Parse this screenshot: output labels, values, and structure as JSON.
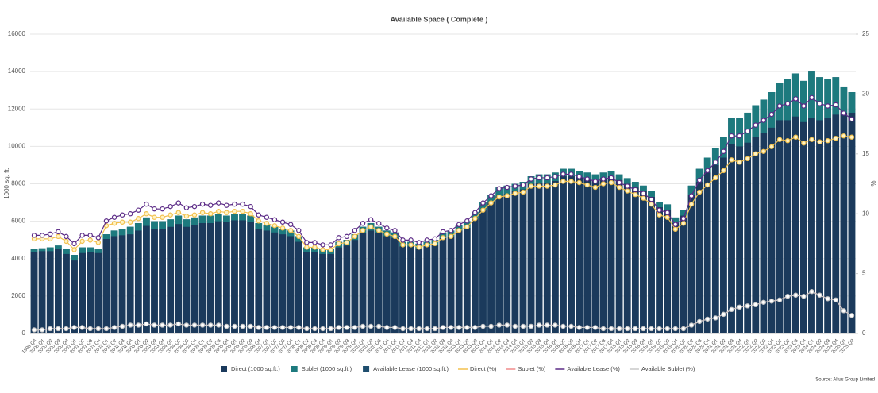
{
  "chart_data": {
    "type": "bar",
    "title": "Available Space ( Complete )",
    "y_label": "1000 sq. ft.",
    "y2_label": "%",
    "source": "Source:  Altus Group Limited",
    "stacked": true,
    "grid": true,
    "legend": "bottom",
    "categories": [
      "1999 Q4",
      "2000 Q1",
      "2000 Q2",
      "2000 Q3",
      "2000 Q4",
      "2001 Q1",
      "2001 Q2",
      "2001 Q3",
      "2001 Q4",
      "2002 Q1",
      "2002 Q2",
      "2002 Q3",
      "2002 Q4",
      "2003 Q1",
      "2003 Q2",
      "2003 Q3",
      "2003 Q4",
      "2004 Q1",
      "2004 Q2",
      "2004 Q3",
      "2004 Q4",
      "2005 Q1",
      "2005 Q2",
      "2005 Q3",
      "2005 Q4",
      "2006 Q1",
      "2006 Q2",
      "2006 Q3",
      "2006 Q4",
      "2007 Q1",
      "2007 Q2",
      "2007 Q3",
      "2007 Q4",
      "2008 Q1",
      "2008 Q2",
      "2008 Q3",
      "2008 Q4",
      "2009 Q1",
      "2009 Q2",
      "2009 Q3",
      "2009 Q4",
      "2010 Q1",
      "2010 Q2",
      "2010 Q3",
      "2010 Q4",
      "2011 Q1",
      "2011 Q2",
      "2011 Q3",
      "2011 Q4",
      "2012 Q1",
      "2012 Q2",
      "2012 Q3",
      "2012 Q4",
      "2013 Q1",
      "2013 Q2",
      "2013 Q3",
      "2013 Q4",
      "2014 Q1",
      "2014 Q2",
      "2014 Q3",
      "2014 Q4",
      "2015 Q1",
      "2015 Q2",
      "2015 Q3",
      "2015 Q4",
      "2016 Q1",
      "2016 Q2",
      "2016 Q3",
      "2016 Q4",
      "2017 Q1",
      "2017 Q2",
      "2017 Q3",
      "2017 Q4",
      "2018 Q1",
      "2018 Q2",
      "2018 Q3",
      "2018 Q4",
      "2019 Q1",
      "2019 Q2",
      "2019 Q3",
      "2019 Q4",
      "2020 Q1",
      "2020 Q2",
      "2020 Q3",
      "2020 Q4",
      "2021 Q1",
      "2021 Q2",
      "2021 Q3",
      "2021 Q4",
      "2022 Q1",
      "2022 Q2",
      "2022 Q3",
      "2022 Q4",
      "2023 Q1",
      "2023 Q2",
      "2023 Q3",
      "2023 Q4",
      "2024 Q1",
      "2024 Q2",
      "2024 Q3",
      "2024 Q4",
      "2025 Q1",
      "2025 Q2"
    ],
    "ylim": [
      0,
      16000
    ],
    "yticks": [
      0,
      2000,
      4000,
      6000,
      8000,
      10000,
      12000,
      14000,
      16000
    ],
    "y2lim": [
      0,
      25
    ],
    "y2ticks": [
      0,
      5,
      10,
      15,
      20,
      25
    ],
    "series": [
      {
        "name": "Available Lease (1000 sq.ft.)",
        "type": "bar",
        "role": "total",
        "color": "#1f4e6e",
        "values": [
          4500,
          4550,
          4600,
          4700,
          4500,
          4200,
          4600,
          4600,
          4500,
          5300,
          5500,
          5600,
          5700,
          5900,
          6200,
          6000,
          6000,
          6100,
          6300,
          6100,
          6200,
          6300,
          6300,
          6400,
          6300,
          6400,
          6400,
          6300,
          5900,
          5800,
          5700,
          5600,
          5500,
          5200,
          4600,
          4600,
          4500,
          4500,
          4900,
          5000,
          5300,
          5700,
          5900,
          5700,
          5500,
          5400,
          4900,
          4900,
          4800,
          4900,
          5000,
          5400,
          5500,
          5800,
          6000,
          6500,
          7000,
          7400,
          7800,
          7900,
          8000,
          8100,
          8400,
          8500,
          8500,
          8600,
          8800,
          8800,
          8700,
          8600,
          8500,
          8600,
          8700,
          8500,
          8300,
          8100,
          7900,
          7600,
          7000,
          6900,
          6200,
          6600,
          7900,
          8800,
          9400,
          9900,
          10500,
          11500,
          11500,
          11800,
          12200,
          12500,
          12900,
          13400,
          13600,
          13900,
          13500,
          14000,
          13700,
          13600,
          13700,
          13200,
          12900
        ]
      },
      {
        "name": "Direct (1000 sq.ft.)",
        "type": "bar",
        "role": "stack",
        "color": "#1b3a5c",
        "values": [
          4350,
          4400,
          4400,
          4500,
          4250,
          3900,
          4300,
          4350,
          4300,
          5050,
          5200,
          5250,
          5300,
          5500,
          5750,
          5600,
          5600,
          5700,
          5850,
          5700,
          5800,
          5900,
          5900,
          6000,
          5950,
          6050,
          6050,
          5950,
          5600,
          5500,
          5400,
          5300,
          5200,
          4900,
          4350,
          4350,
          4250,
          4250,
          4600,
          4700,
          5000,
          5350,
          5500,
          5350,
          5200,
          5100,
          4650,
          4650,
          4550,
          4650,
          4750,
          5100,
          5200,
          5500,
          5650,
          6150,
          6600,
          7000,
          7350,
          7450,
          7600,
          7700,
          8000,
          8050,
          8050,
          8150,
          8400,
          8400,
          8350,
          8250,
          8150,
          8300,
          8400,
          8200,
          8000,
          7800,
          7600,
          7300,
          6750,
          6600,
          5900,
          6300,
          7400,
          8100,
          8600,
          9000,
          9400,
          10100,
          10000,
          10200,
          10500,
          10700,
          11000,
          11400,
          11400,
          11600,
          11300,
          11500,
          11400,
          11500,
          11700,
          11800,
          11800
        ]
      },
      {
        "name": "Sublet (1000 sq.ft.)",
        "type": "bar",
        "role": "stack",
        "color": "#1d7a7e",
        "values": [
          150,
          150,
          200,
          200,
          250,
          300,
          300,
          250,
          200,
          250,
          300,
          350,
          400,
          400,
          450,
          400,
          400,
          400,
          450,
          400,
          400,
          400,
          400,
          400,
          350,
          350,
          350,
          350,
          300,
          300,
          300,
          300,
          300,
          300,
          250,
          250,
          250,
          250,
          300,
          300,
          300,
          350,
          400,
          350,
          300,
          300,
          250,
          250,
          250,
          250,
          250,
          300,
          300,
          300,
          350,
          350,
          400,
          400,
          450,
          450,
          400,
          400,
          400,
          450,
          450,
          450,
          400,
          400,
          350,
          350,
          350,
          300,
          300,
          300,
          300,
          300,
          300,
          300,
          250,
          300,
          300,
          300,
          500,
          700,
          800,
          900,
          1100,
          1400,
          1500,
          1600,
          1700,
          1800,
          1900,
          2000,
          2200,
          2300,
          2200,
          2500,
          2300,
          2100,
          2000,
          1400,
          1100
        ]
      },
      {
        "name": "Direct (%)",
        "type": "line",
        "axis": "y2",
        "color": "#f2c14e",
        "marker": "#fff3c4",
        "values": [
          7.9,
          7.9,
          7.9,
          8.1,
          7.7,
          7.0,
          7.7,
          7.8,
          7.6,
          9.0,
          9.2,
          9.3,
          9.3,
          9.6,
          10.0,
          9.7,
          9.7,
          9.9,
          10.1,
          9.8,
          9.9,
          10.1,
          10.0,
          10.2,
          10.1,
          10.2,
          10.2,
          10.0,
          9.4,
          9.2,
          9.0,
          8.8,
          8.6,
          8.1,
          7.2,
          7.2,
          7.0,
          7.0,
          7.5,
          7.6,
          8.1,
          8.6,
          8.9,
          8.6,
          8.3,
          8.1,
          7.4,
          7.4,
          7.2,
          7.4,
          7.5,
          8.0,
          8.1,
          8.6,
          8.9,
          9.6,
          10.3,
          10.9,
          11.4,
          11.5,
          11.7,
          11.8,
          12.3,
          12.3,
          12.3,
          12.4,
          12.7,
          12.7,
          12.6,
          12.4,
          12.2,
          12.5,
          12.6,
          12.2,
          11.9,
          11.6,
          11.3,
          10.8,
          9.9,
          9.7,
          8.7,
          9.2,
          10.8,
          11.8,
          12.4,
          13.0,
          13.6,
          14.5,
          14.3,
          14.6,
          15.0,
          15.2,
          15.6,
          16.2,
          16.1,
          16.4,
          15.9,
          16.2,
          16.0,
          16.1,
          16.3,
          16.5,
          16.4
        ]
      },
      {
        "name": "Sublet (%)",
        "type": "line",
        "axis": "y2",
        "color": "#f08a8a",
        "values": [
          0.3,
          0.3,
          0.4,
          0.4,
          0.4,
          0.5,
          0.5,
          0.4,
          0.4,
          0.4,
          0.5,
          0.6,
          0.7,
          0.7,
          0.8,
          0.7,
          0.7,
          0.7,
          0.8,
          0.7,
          0.7,
          0.7,
          0.7,
          0.7,
          0.6,
          0.6,
          0.6,
          0.6,
          0.5,
          0.5,
          0.5,
          0.5,
          0.5,
          0.5,
          0.4,
          0.4,
          0.4,
          0.4,
          0.5,
          0.5,
          0.5,
          0.6,
          0.6,
          0.6,
          0.5,
          0.5,
          0.4,
          0.4,
          0.4,
          0.4,
          0.4,
          0.5,
          0.5,
          0.5,
          0.5,
          0.5,
          0.6,
          0.6,
          0.7,
          0.7,
          0.6,
          0.6,
          0.6,
          0.7,
          0.7,
          0.7,
          0.6,
          0.6,
          0.5,
          0.5,
          0.5,
          0.4,
          0.4,
          0.4,
          0.4,
          0.4,
          0.4,
          0.4,
          0.4,
          0.4,
          0.4,
          0.4,
          0.7,
          1.0,
          1.2,
          1.3,
          1.6,
          2.0,
          2.2,
          2.3,
          2.4,
          2.6,
          2.7,
          2.8,
          3.1,
          3.2,
          3.1,
          3.5,
          3.2,
          2.9,
          2.8,
          1.9,
          1.5
        ]
      },
      {
        "name": "Available Lease (%)",
        "type": "line",
        "axis": "y2",
        "color": "#5b2a86",
        "marker": "#ffffff",
        "values": [
          8.2,
          8.2,
          8.3,
          8.5,
          8.1,
          7.5,
          8.2,
          8.2,
          8.0,
          9.4,
          9.7,
          9.9,
          10.0,
          10.3,
          10.8,
          10.4,
          10.4,
          10.6,
          10.9,
          10.5,
          10.6,
          10.8,
          10.7,
          10.9,
          10.7,
          10.8,
          10.8,
          10.6,
          9.9,
          9.7,
          9.5,
          9.3,
          9.1,
          8.6,
          7.6,
          7.6,
          7.4,
          7.4,
          8.0,
          8.1,
          8.6,
          9.2,
          9.5,
          9.2,
          8.8,
          8.6,
          7.8,
          7.8,
          7.6,
          7.8,
          7.9,
          8.5,
          8.6,
          9.1,
          9.4,
          10.1,
          10.9,
          11.5,
          12.1,
          12.2,
          12.3,
          12.4,
          12.9,
          13.0,
          13.0,
          13.1,
          13.3,
          13.3,
          13.1,
          12.9,
          12.7,
          12.9,
          13.0,
          12.6,
          12.3,
          12.0,
          11.7,
          11.2,
          10.3,
          10.1,
          9.1,
          9.6,
          11.5,
          12.8,
          13.6,
          14.3,
          15.2,
          16.5,
          16.5,
          16.9,
          17.4,
          17.8,
          18.3,
          19.0,
          19.2,
          19.6,
          19.0,
          19.7,
          19.2,
          19.0,
          19.1,
          18.4,
          17.9
        ]
      },
      {
        "name": "Available Sublet (%)",
        "type": "line",
        "axis": "y2",
        "color": "#c8c8c8",
        "marker": "#ffffff",
        "values": [
          0.3,
          0.3,
          0.4,
          0.4,
          0.4,
          0.5,
          0.5,
          0.4,
          0.4,
          0.4,
          0.5,
          0.6,
          0.7,
          0.7,
          0.8,
          0.7,
          0.7,
          0.7,
          0.8,
          0.7,
          0.7,
          0.7,
          0.7,
          0.7,
          0.6,
          0.6,
          0.6,
          0.6,
          0.5,
          0.5,
          0.5,
          0.5,
          0.5,
          0.5,
          0.4,
          0.4,
          0.4,
          0.4,
          0.5,
          0.5,
          0.5,
          0.6,
          0.6,
          0.6,
          0.5,
          0.5,
          0.4,
          0.4,
          0.4,
          0.4,
          0.4,
          0.5,
          0.5,
          0.5,
          0.5,
          0.5,
          0.6,
          0.6,
          0.7,
          0.7,
          0.6,
          0.6,
          0.6,
          0.7,
          0.7,
          0.7,
          0.6,
          0.6,
          0.5,
          0.5,
          0.5,
          0.4,
          0.4,
          0.4,
          0.4,
          0.4,
          0.4,
          0.4,
          0.4,
          0.4,
          0.4,
          0.4,
          0.7,
          1.0,
          1.2,
          1.3,
          1.6,
          2.0,
          2.2,
          2.3,
          2.4,
          2.6,
          2.7,
          2.8,
          3.1,
          3.2,
          3.1,
          3.5,
          3.2,
          2.9,
          2.8,
          1.9,
          1.5
        ]
      }
    ]
  }
}
